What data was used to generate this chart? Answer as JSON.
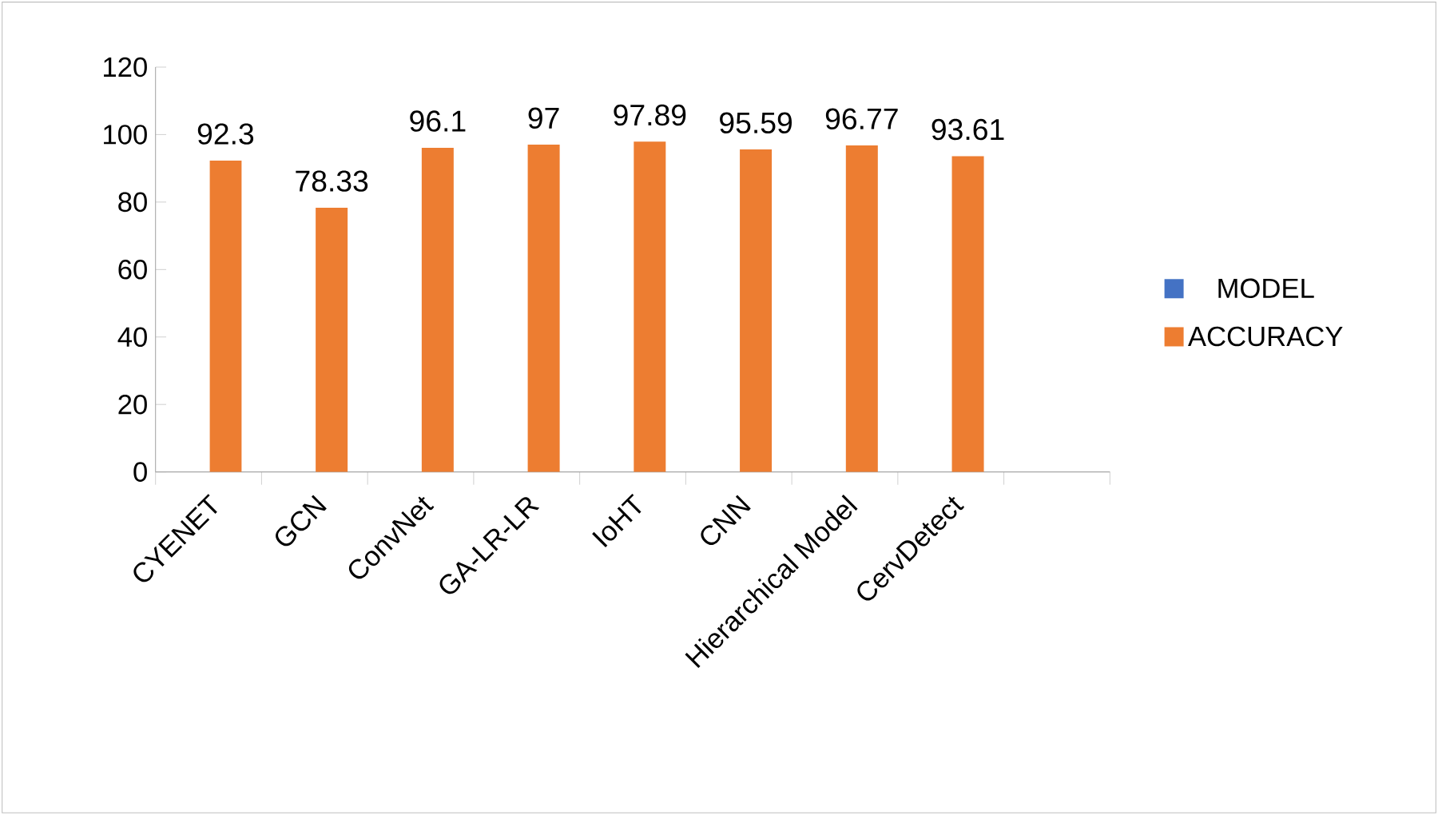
{
  "chart_data": {
    "type": "bar",
    "categories": [
      "CYENET",
      "GCN",
      "ConvNet",
      "GA-LR-LR",
      "IoHT",
      "CNN",
      "Hierarchical Model",
      "CervDetect",
      null
    ],
    "series": [
      {
        "name": "MODEL",
        "color": "#4472c4",
        "values": [
          null,
          null,
          null,
          null,
          null,
          null,
          null,
          null,
          null
        ]
      },
      {
        "name": "ACCURACY",
        "color": "#ed7d31",
        "values": [
          92.3,
          78.33,
          96.1,
          97,
          97.89,
          95.59,
          96.77,
          93.61,
          null
        ]
      }
    ],
    "ylim": [
      0,
      120
    ],
    "yticks": [
      0,
      20,
      40,
      60,
      80,
      100,
      120
    ],
    "data_labels": true,
    "legend": "right",
    "grid": false
  }
}
